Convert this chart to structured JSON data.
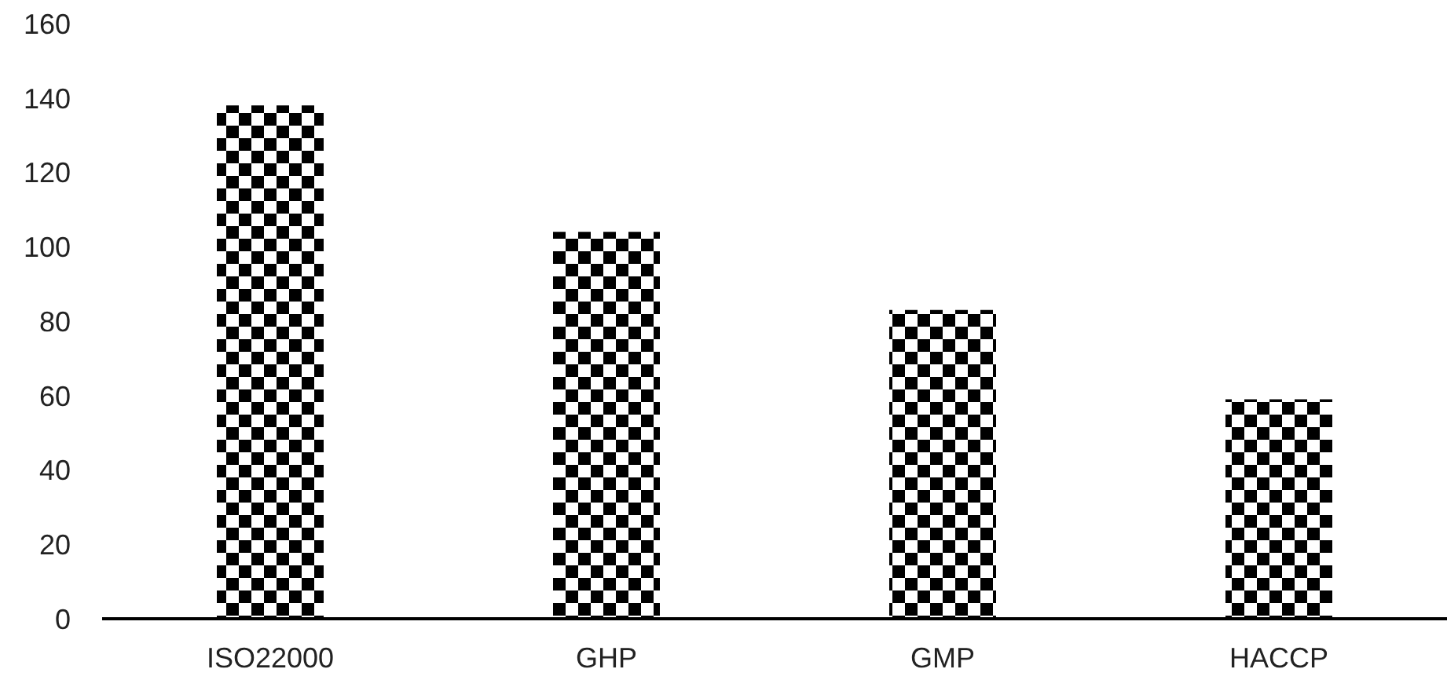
{
  "chart_data": {
    "type": "bar",
    "categories": [
      "ISO22000",
      "GHP",
      "GMP",
      "HACCP"
    ],
    "values": [
      138,
      104,
      83,
      59
    ],
    "color": "#000000",
    "ylim": [
      0,
      160
    ],
    "yticks": [
      0,
      20,
      40,
      60,
      80,
      100,
      120,
      140,
      160
    ],
    "grid": false
  }
}
